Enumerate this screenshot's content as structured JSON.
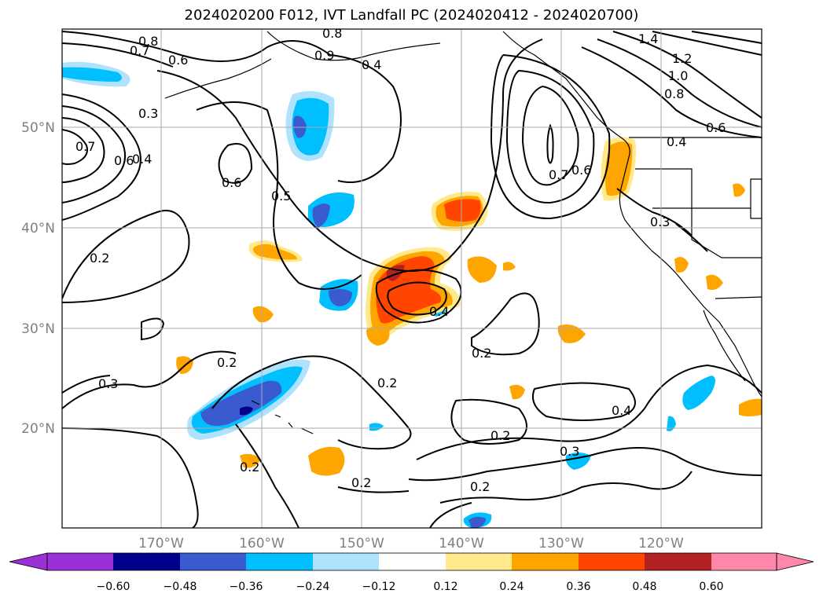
{
  "title": "2024020200 F012, IVT Landfall PC (2024020412 - 2024020700)",
  "map": {
    "lat_labels": [
      "50°N",
      "40°N",
      "30°N",
      "20°N"
    ],
    "lon_labels": [
      "170°W",
      "160°W",
      "150°W",
      "140°W",
      "130°W",
      "120°W"
    ],
    "grid": true
  },
  "contour_labels": [
    "0.8",
    "0.7",
    "0.6",
    "0.3",
    "0.7",
    "0.6",
    "0.4",
    "0.6",
    "0.5",
    "0.2",
    "0.8",
    "0.9",
    "0.4",
    "0.4",
    "0.2",
    "0.2",
    "0.2",
    "0.3",
    "0.2",
    "0.2",
    "0.2",
    "0.4",
    "0.3",
    "0.2",
    "0.7",
    "0.6",
    "0.3",
    "0.4",
    "1.4",
    "1.2",
    "1.0",
    "0.8",
    "0.6"
  ],
  "colorbar": {
    "ticks": [
      "−0.60",
      "−0.48",
      "−0.36",
      "−0.24",
      "−0.12",
      "0.12",
      "0.24",
      "0.36",
      "0.48",
      "0.60"
    ],
    "colors": [
      "#9b30d6",
      "#00008b",
      "#3a5ad0",
      "#00bfff",
      "#afe2fc",
      "#ffffff",
      "#ffe98a",
      "#ffa500",
      "#ff4500",
      "#b22222",
      "#ff88aa"
    ]
  },
  "fill_colors": {
    "neg_light": "#afe2fc",
    "neg_mid": "#00bfff",
    "neg_strong": "#3a5ad0",
    "neg_max": "#00008b",
    "pos_light": "#ffe98a",
    "pos_mid": "#ffa500",
    "pos_strong": "#ff4500",
    "pos_max": "#b22222"
  }
}
